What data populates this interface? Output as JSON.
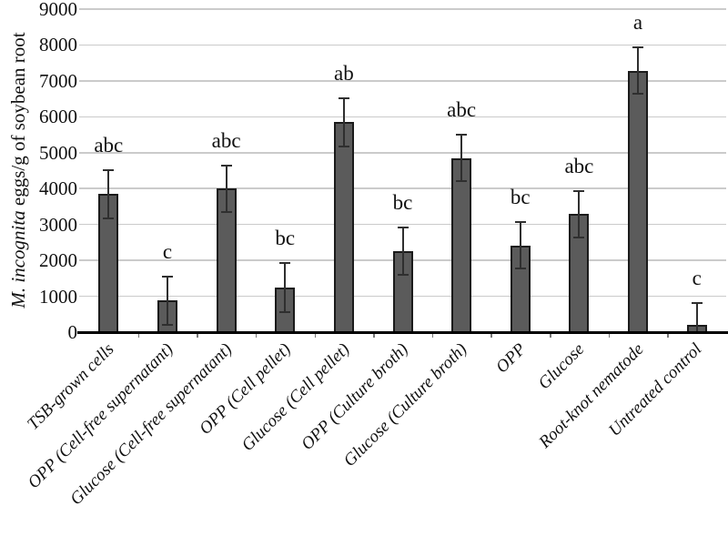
{
  "chart_data": {
    "type": "bar",
    "title": "",
    "ylabel_italic": "M. incognita",
    "ylabel_rest": " eggs/g of soybean root",
    "xlabel": "",
    "ylim": [
      0,
      9000
    ],
    "ytick_interval": 1000,
    "ytick_labels": [
      "0",
      "1000",
      "2000",
      "3000",
      "4000",
      "5000",
      "6000",
      "7000",
      "8000",
      "9000"
    ],
    "grid": true,
    "legend": "none",
    "bar_color": "#5b5b5b",
    "bar_border_color": "#1b1b1b",
    "error_color": "#2f2f2f",
    "axis_color": "#000000",
    "categories": [
      "TSB-grown cells",
      "OPP (Cell-free supernatant)",
      "Glucose (Cell-free supernatant)",
      "OPP (Cell pellet)",
      "Glucose (Cell pellet)",
      "OPP (Culture broth)",
      "Glucose (Culture broth)",
      "OPP",
      "Glucose",
      "Root-knot nematode",
      "Untreated control"
    ],
    "values": [
      3850,
      880,
      4000,
      1250,
      5850,
      2250,
      4850,
      2420,
      3290,
      7280,
      200
    ],
    "error_bars": [
      670,
      670,
      650,
      680,
      670,
      660,
      650,
      650,
      650,
      650,
      600
    ],
    "sig_letters": [
      "abc",
      "c",
      "abc",
      "bc",
      "ab",
      "bc",
      "abc",
      "bc",
      "abc",
      "a",
      "c"
    ]
  }
}
